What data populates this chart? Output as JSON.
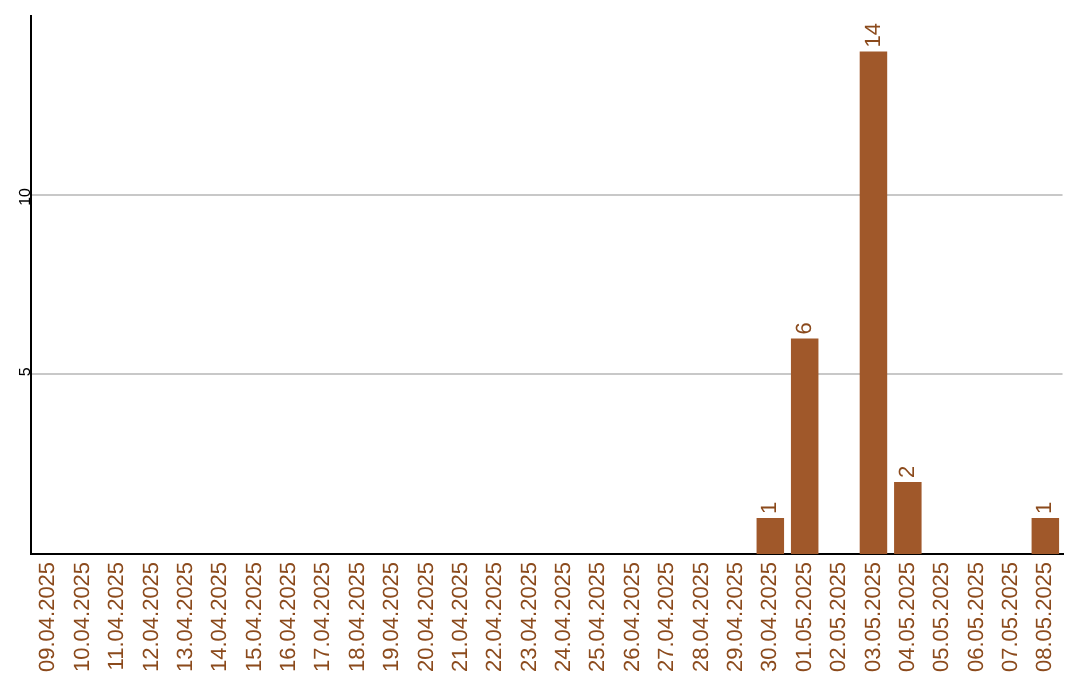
{
  "chart_data": {
    "type": "bar",
    "categories": [
      "09.04.2025",
      "10.04.2025",
      "11.04.2025",
      "12.04.2025",
      "13.04.2025",
      "14.04.2025",
      "15.04.2025",
      "16.04.2025",
      "17.04.2025",
      "18.04.2025",
      "19.04.2025",
      "20.04.2025",
      "21.04.2025",
      "22.04.2025",
      "23.04.2025",
      "24.04.2025",
      "25.04.2025",
      "26.04.2025",
      "27.04.2025",
      "28.04.2025",
      "29.04.2025",
      "30.04.2025",
      "01.05.2025",
      "02.05.2025",
      "03.05.2025",
      "04.05.2025",
      "05.05.2025",
      "06.05.2025",
      "07.05.2025",
      "08.05.2025"
    ],
    "values": [
      0,
      0,
      0,
      0,
      0,
      0,
      0,
      0,
      0,
      0,
      0,
      0,
      0,
      0,
      0,
      0,
      0,
      0,
      0,
      0,
      0,
      1,
      6,
      0,
      14,
      2,
      0,
      0,
      0,
      1
    ],
    "value_labels": [
      null,
      null,
      null,
      null,
      null,
      null,
      null,
      null,
      null,
      null,
      null,
      null,
      null,
      null,
      null,
      null,
      null,
      null,
      null,
      null,
      null,
      "1",
      "6",
      null,
      "14",
      "2",
      null,
      null,
      null,
      "1"
    ],
    "color": "#a0582a",
    "ylim": [
      0,
      15
    ],
    "yticks": [
      5,
      10
    ],
    "grid": "y",
    "legend": false
  }
}
